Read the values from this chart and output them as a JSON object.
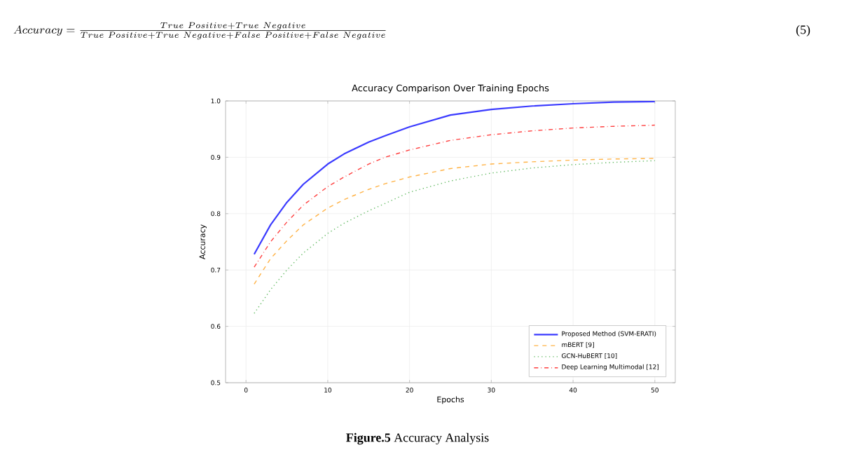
{
  "chart_data": {
    "type": "line",
    "title": "Accuracy Comparison Over Training Epochs",
    "xlabel": "Epochs",
    "ylabel": "Accuracy",
    "x": [
      1,
      3,
      5,
      7,
      10,
      12,
      15,
      17,
      20,
      25,
      30,
      35,
      40,
      45,
      50
    ],
    "series": [
      {
        "name": "Proposed Method (SVM-ERATI)",
        "color": "#3b3bff",
        "line_style": "solid",
        "values": [
          0.728,
          0.78,
          0.82,
          0.852,
          0.888,
          0.906,
          0.927,
          0.938,
          0.954,
          0.975,
          0.985,
          0.991,
          0.995,
          0.998,
          0.999
        ]
      },
      {
        "name": "mBERT [9]",
        "color": "#ffb347",
        "line_style": "dashed",
        "values": [
          0.675,
          0.72,
          0.752,
          0.78,
          0.81,
          0.825,
          0.843,
          0.853,
          0.865,
          0.88,
          0.888,
          0.892,
          0.895,
          0.897,
          0.898
        ]
      },
      {
        "name": "GCN-HuBERT [10]",
        "color": "#66bb66",
        "line_style": "dotted",
        "values": [
          0.623,
          0.665,
          0.7,
          0.73,
          0.765,
          0.783,
          0.805,
          0.818,
          0.838,
          0.858,
          0.872,
          0.881,
          0.887,
          0.891,
          0.894
        ]
      },
      {
        "name": "Deep Learning Multimodal [12]",
        "color": "#ff4040",
        "line_style": "dashdot",
        "values": [
          0.705,
          0.75,
          0.785,
          0.815,
          0.848,
          0.865,
          0.888,
          0.9,
          0.913,
          0.93,
          0.94,
          0.947,
          0.952,
          0.955,
          0.957
        ]
      }
    ],
    "xlim": [
      -2.5,
      52.5
    ],
    "ylim": [
      0.5,
      1.0
    ],
    "xticks": [
      0,
      10,
      20,
      30,
      40,
      50
    ],
    "yticks": [
      {
        "value": 0.5,
        "label": "0.5"
      },
      {
        "value": 0.6,
        "label": "0.6"
      },
      {
        "value": 0.7,
        "label": "0.7"
      },
      {
        "value": 0.8,
        "label": "0.8"
      },
      {
        "value": 0.9,
        "label": "0.9"
      },
      {
        "value": 1.0,
        "label": "1.0"
      }
    ],
    "grid": true,
    "legend": "bottom right",
    "annotations": [
      "Accuracy=\\frac{True\\ Positive+True\\ Negative}{True\\ Positive+True\\ Negative+False\\ Positive+False\\ Negative}",
      "(5)",
      "**Figure.5** Accuracy Analysis"
    ]
  }
}
